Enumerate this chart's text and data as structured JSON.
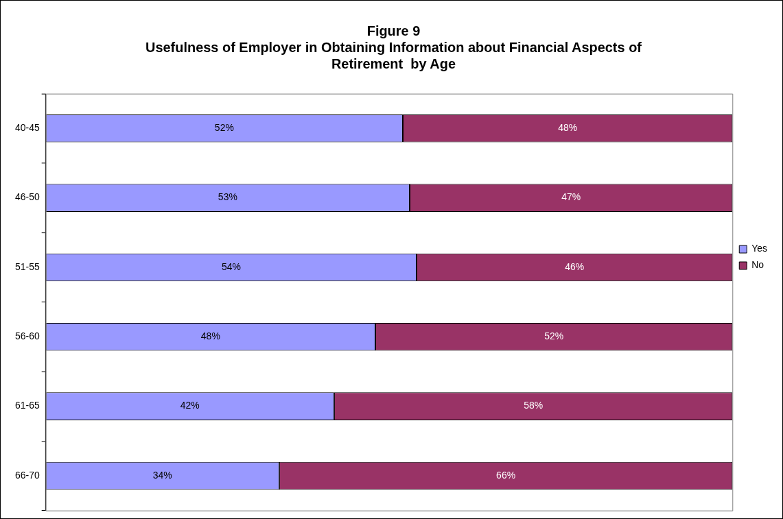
{
  "chart_data": {
    "type": "bar",
    "orientation": "horizontal",
    "stacked": true,
    "title": "Figure 9\nUsefulness of Employer in Obtaining Information about Financial Aspects of Retirement  by Age",
    "categories": [
      "40-45",
      "46-50",
      "51-55",
      "56-60",
      "61-65",
      "66-70"
    ],
    "series": [
      {
        "name": "Yes",
        "color": "#9999ff",
        "values": [
          52,
          53,
          54,
          48,
          42,
          34
        ],
        "value_labels": [
          "52%",
          "53%",
          "54%",
          "48%",
          "42%",
          "34%"
        ]
      },
      {
        "name": "No",
        "color": "#993366",
        "values": [
          48,
          47,
          46,
          52,
          58,
          66
        ],
        "value_labels": [
          "48%",
          "47%",
          "46%",
          "52%",
          "58%",
          "66%"
        ]
      }
    ],
    "legend": "right",
    "grid": false,
    "tick_labels": "y"
  }
}
